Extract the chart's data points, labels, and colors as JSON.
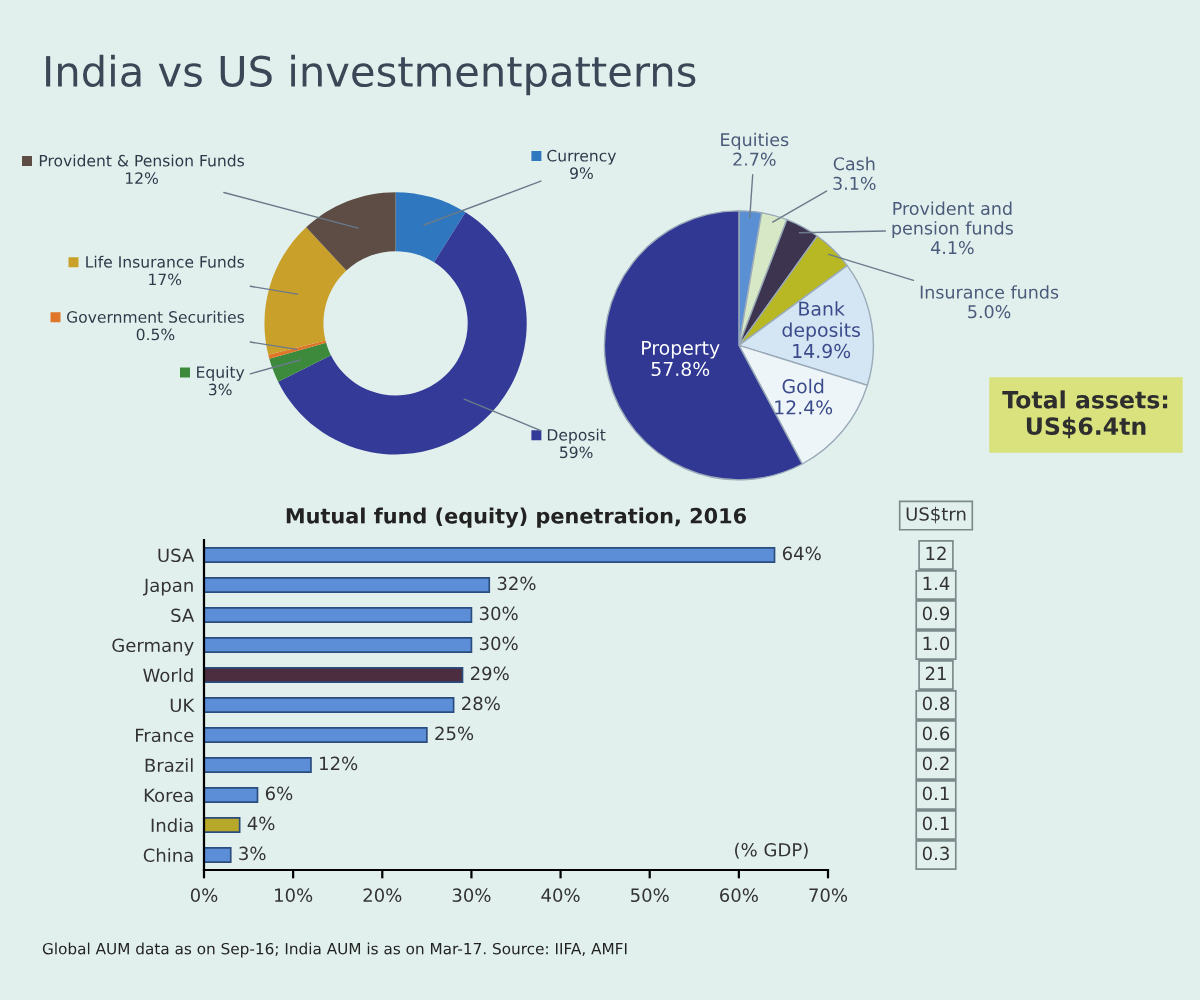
{
  "chart_data": [
    {
      "type": "donut",
      "title": "India vs US investmentpatterns",
      "categories": [
        "Currency",
        "Deposit",
        "Equity",
        "Government Securities",
        "Life Insurance Funds",
        "Provident & Pension Funds"
      ],
      "values": [
        9,
        59,
        3,
        0.5,
        17,
        12
      ],
      "value_labels": [
        "9%",
        "59%",
        "3%",
        "0.5%",
        "17%",
        "12%"
      ],
      "colors": [
        "#2f78bf",
        "#343a98",
        "#3d8a3c",
        "#e0762a",
        "#c9a12a",
        "#5e4d45"
      ],
      "legend": "left"
    },
    {
      "type": "pie",
      "categories": [
        "Equities",
        "Cash",
        "Provident and\npension funds",
        "Insurance funds",
        "Bank\ndeposits",
        "Gold",
        "Property"
      ],
      "values": [
        2.7,
        3.1,
        4.1,
        5.0,
        14.9,
        12.4,
        57.8
      ],
      "value_labels": [
        "2.7%",
        "3.1%",
        "4.1%",
        "5.0%",
        "14.9%",
        "12.4%",
        "57.8%"
      ],
      "colors": [
        "#5b8fd3",
        "#d6e8c6",
        "#3d3550",
        "#b7b823",
        "#d4e6f3",
        "#eef5f8",
        "#313893"
      ],
      "annotations": [
        "Total assets:\nUS$6.4tn"
      ]
    },
    {
      "type": "bar",
      "orientation": "horizontal",
      "title": "Mutual fund (equity) penetration, 2016",
      "categories": [
        "USA",
        "Japan",
        "SA",
        "Germany",
        "World",
        "UK",
        "France",
        "Brazil",
        "Korea",
        "India",
        "China"
      ],
      "values": [
        64,
        32,
        30,
        30,
        29,
        28,
        25,
        12,
        6,
        4,
        3
      ],
      "colors": [
        "#5b8ed6",
        "#5b8ed6",
        "#5b8ed6",
        "#5b8ed6",
        "#4b2d3f",
        "#5b8ed6",
        "#5b8ed6",
        "#5b8ed6",
        "#5b8ed6",
        "#b8a82a",
        "#5b8ed6"
      ],
      "value_labels": [
        "64%",
        "32%",
        "30%",
        "30%",
        "29%",
        "28%",
        "25%",
        "12%",
        "6%",
        "4%",
        "3%"
      ],
      "xlim": [
        0,
        70
      ],
      "xticks": [
        {
          "value": 0,
          "label": "0%"
        },
        {
          "value": 10,
          "label": "10%"
        },
        {
          "value": 20,
          "label": "20%"
        },
        {
          "value": 30,
          "label": "30%"
        },
        {
          "value": 40,
          "label": "40%"
        },
        {
          "value": 50,
          "label": "50%"
        },
        {
          "value": 60,
          "label": "60%"
        },
        {
          "value": 70,
          "label": "70%"
        }
      ],
      "annotations": [
        "(% GDP)",
        "Global AUM data as on Sep-16; India AUM is as on Mar-17. Source: IIFA, AMFI"
      ]
    },
    {
      "type": "other",
      "title": "US$trn",
      "values": [
        12,
        1.4,
        0.9,
        1.0,
        21,
        0.8,
        0.6,
        0.2,
        0.1,
        0.1,
        0.3
      ],
      "value_labels": [
        "12",
        "1.4",
        "0.9",
        "1.0",
        "21",
        "0.8",
        "0.6",
        "0.2",
        "0.1",
        "0.1",
        "0.3"
      ]
    }
  ]
}
